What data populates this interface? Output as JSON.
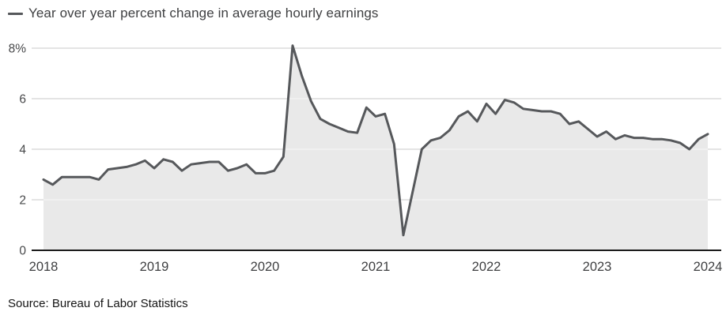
{
  "legend": {
    "label": "Year over year percent change in average hourly earnings"
  },
  "source": {
    "text": "Source: Bureau of Labor Statistics"
  },
  "colors": {
    "line": "#56585b",
    "area": "#e9e9e9",
    "grid": "#c9c9c9",
    "grid_over_area": "#f6f6f6",
    "axis": "#1a1a1a",
    "tick_text": "#47484a",
    "title_text": "#3e3f41",
    "source_text": "#141414"
  },
  "chart_data": {
    "type": "area",
    "title": "Year over year percent change in average hourly earnings",
    "unit": "percent",
    "frequency": "monthly",
    "x_start": "2018-01",
    "x_end": "2024-01",
    "x_tick_labels": [
      "2018",
      "2019",
      "2020",
      "2021",
      "2022",
      "2023",
      "2024"
    ],
    "y_tick_labels": [
      "8%",
      "6",
      "4",
      "2",
      "0"
    ],
    "y_ticks": [
      8,
      6,
      4,
      2,
      0
    ],
    "ylim": [
      0,
      8.4
    ],
    "grid": "on",
    "legend_position": "top-left",
    "values": [
      2.8,
      2.6,
      2.9,
      2.9,
      2.9,
      2.9,
      2.8,
      3.2,
      3.25,
      3.3,
      3.4,
      3.55,
      3.25,
      3.6,
      3.5,
      3.15,
      3.4,
      3.45,
      3.5,
      3.5,
      3.15,
      3.25,
      3.4,
      3.05,
      3.05,
      3.15,
      3.7,
      8.1,
      6.9,
      5.9,
      5.2,
      5.0,
      4.85,
      4.7,
      4.65,
      5.65,
      5.3,
      5.4,
      4.2,
      0.6,
      2.3,
      4.0,
      4.35,
      4.45,
      4.75,
      5.3,
      5.5,
      5.1,
      5.8,
      5.4,
      5.95,
      5.85,
      5.6,
      5.55,
      5.5,
      5.5,
      5.4,
      5.0,
      5.1,
      4.8,
      4.5,
      4.7,
      4.4,
      4.55,
      4.45,
      4.45,
      4.4,
      4.4,
      4.35,
      4.25,
      4.0,
      4.4,
      4.6
    ]
  }
}
